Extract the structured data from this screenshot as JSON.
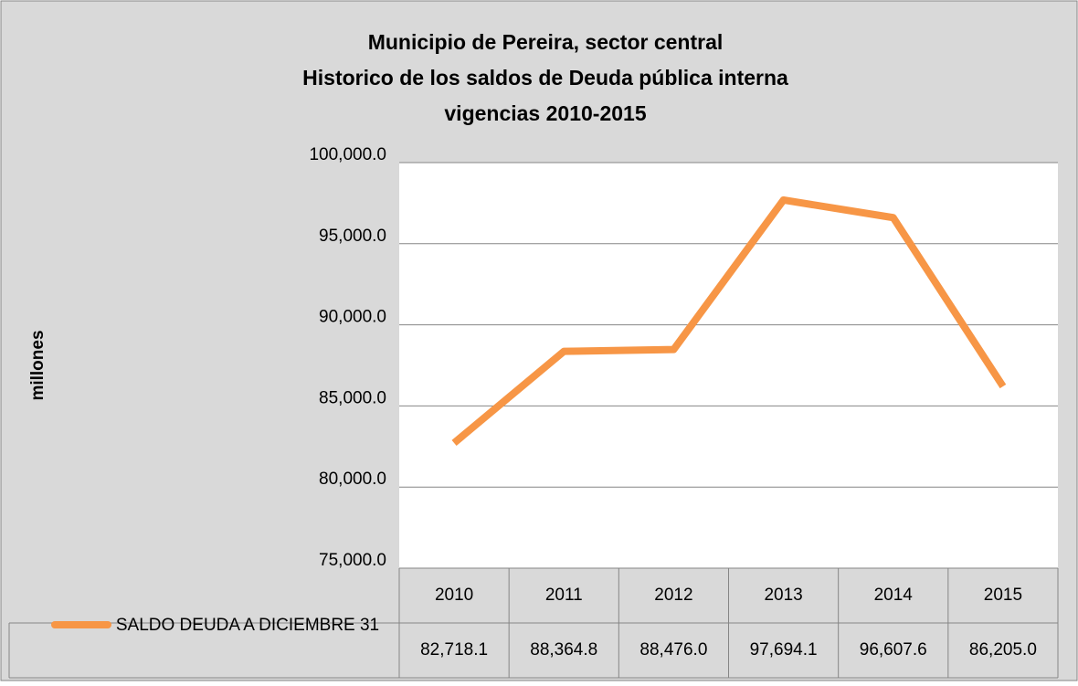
{
  "chart_data": {
    "type": "line",
    "title": [
      "Municipio de Pereira, sector central",
      "Historico de los saldos de Deuda pública interna",
      "vigencias 2010-2015"
    ],
    "y_label": "millones",
    "categories": [
      "2010",
      "2011",
      "2012",
      "2013",
      "2014",
      "2015"
    ],
    "series": [
      {
        "name": "SALDO DEUDA A DICIEMBRE 31",
        "color": "#f79646",
        "values": [
          82718.1,
          88364.8,
          88476.0,
          97694.1,
          96607.6,
          86205.0
        ],
        "value_labels": [
          "82,718.1",
          "88,364.8",
          "88,476.0",
          "97,694.1",
          "96,607.6",
          "86,205.0"
        ]
      }
    ],
    "ylim": [
      75000,
      100000
    ],
    "yticks": [
      {
        "value": 75000,
        "label": "75,000.0"
      },
      {
        "value": 80000,
        "label": "80,000.0"
      },
      {
        "value": 85000,
        "label": "85,000.0"
      },
      {
        "value": 90000,
        "label": "90,000.0"
      },
      {
        "value": 95000,
        "label": "95,000.0"
      },
      {
        "value": 100000,
        "label": "100,000.0"
      }
    ],
    "grid": true,
    "data_table": true
  }
}
